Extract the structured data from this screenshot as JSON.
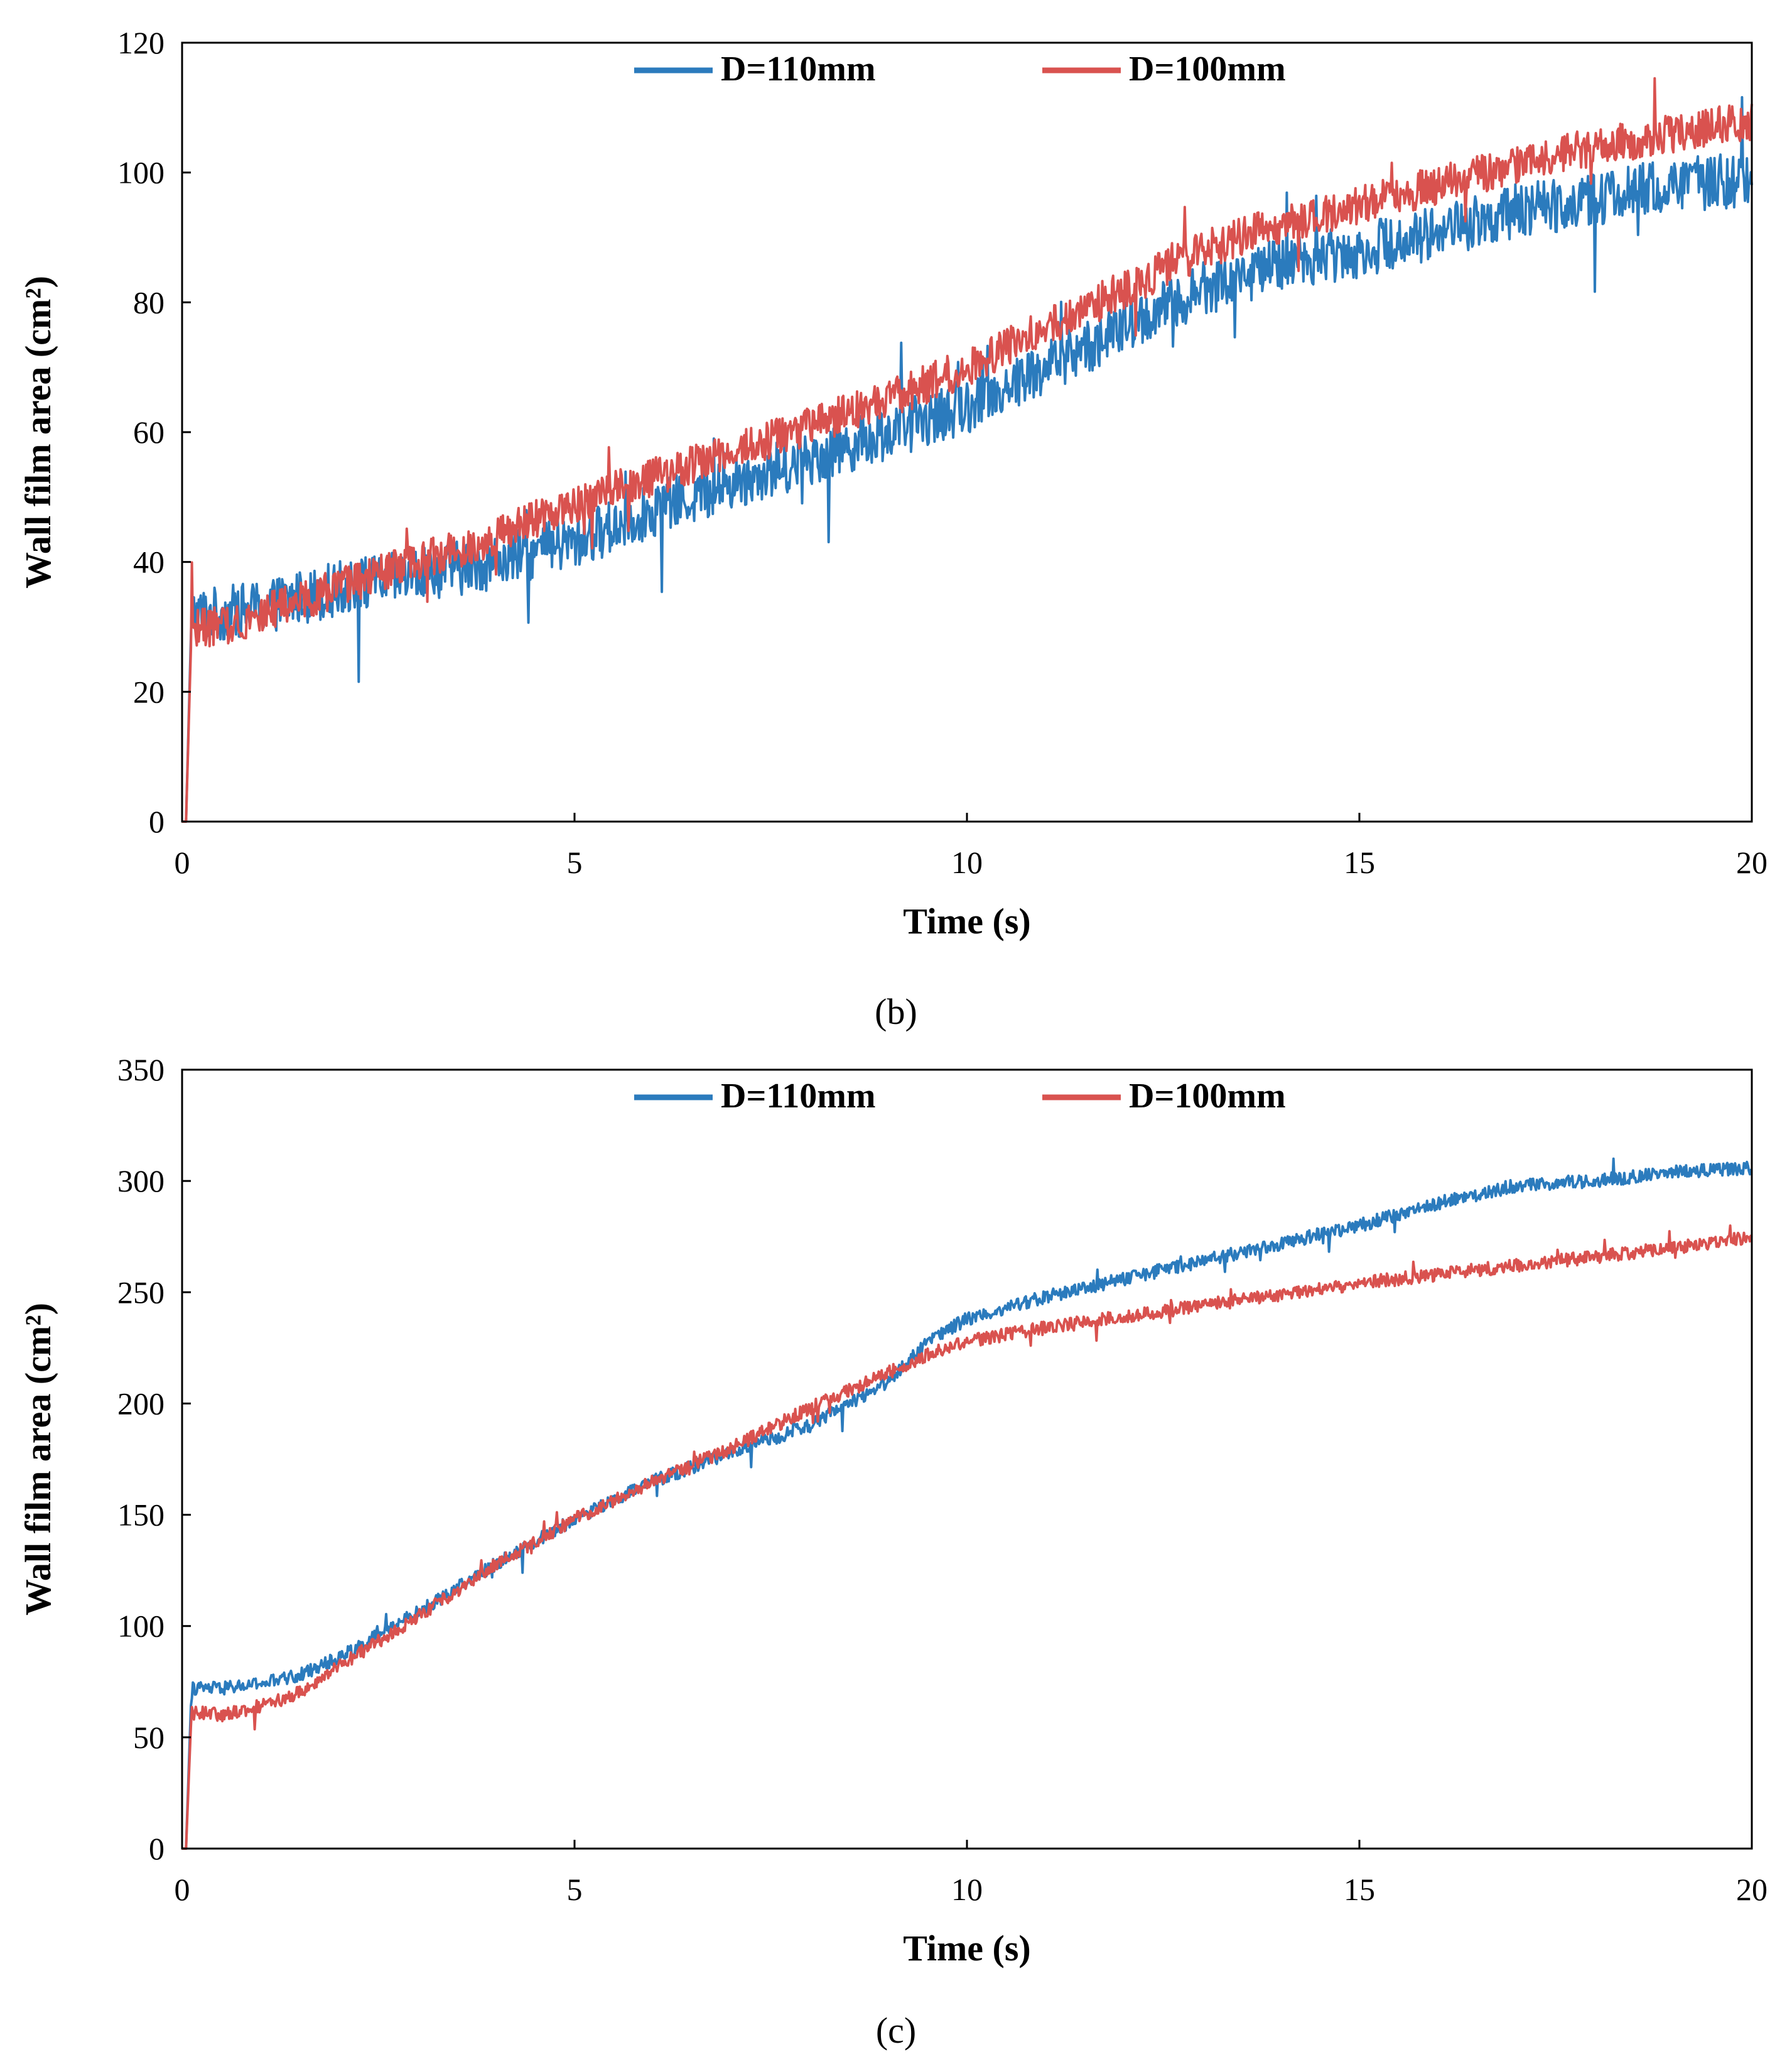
{
  "colors": {
    "series_110": "#2b7bbd",
    "series_100": "#d9524f",
    "axis": "#000000"
  },
  "panel_b": {
    "caption": "(b)",
    "chart_data": {
      "type": "line",
      "title": "",
      "xlabel": "Time (s)",
      "ylabel": "Wall film area (cm²)",
      "xlim": [
        0,
        20
      ],
      "ylim": [
        0,
        120
      ],
      "xticks": [
        0,
        5,
        10,
        15,
        20
      ],
      "yticks": [
        0,
        20,
        40,
        60,
        80,
        100,
        120
      ],
      "grid": false,
      "legend": "top-center",
      "series": [
        {
          "name": "D=110mm",
          "color": "#2b7bbd",
          "noise": 4.2,
          "x": [
            0,
            0.05,
            0.12,
            0.5,
            1,
            2,
            3,
            4,
            5,
            6,
            7,
            8,
            9,
            10,
            11,
            12,
            13,
            14,
            15,
            16,
            17,
            18,
            19,
            20
          ],
          "y": [
            0,
            0,
            32,
            32,
            33,
            36,
            38,
            40,
            43,
            48,
            52,
            56,
            60,
            64,
            70,
            76,
            82,
            86,
            88,
            91,
            94,
            96,
            98,
            99
          ]
        },
        {
          "name": "D=100mm",
          "color": "#d9524f",
          "noise": 3.0,
          "x": [
            0,
            0.05,
            0.12,
            0.5,
            1,
            2,
            3,
            4,
            5,
            6,
            7,
            8,
            9,
            10,
            11,
            12,
            13,
            14,
            15,
            16,
            17,
            18,
            19,
            20
          ],
          "y": [
            0,
            0,
            30,
            30,
            32,
            36,
            40,
            44,
            49,
            53,
            57,
            61,
            65,
            70,
            76,
            82,
            88,
            92,
            95,
            98,
            101,
            104,
            106,
            108
          ]
        }
      ]
    }
  },
  "panel_c": {
    "caption": "(c)",
    "chart_data": {
      "type": "line",
      "title": "",
      "xlabel": "Time (s)",
      "ylabel": "Wall film area (cm²)",
      "xlim": [
        0,
        20
      ],
      "ylim": [
        0,
        350
      ],
      "xticks": [
        0,
        5,
        10,
        15,
        20
      ],
      "yticks": [
        0,
        50,
        100,
        150,
        200,
        250,
        300,
        350
      ],
      "grid": false,
      "legend": "top-center",
      "series": [
        {
          "name": "D=110mm",
          "color": "#2b7bbd",
          "noise": 3.0,
          "x": [
            0,
            0.05,
            0.12,
            0.5,
            1,
            1.5,
            2,
            3,
            4,
            5,
            6,
            7,
            8,
            9,
            9.5,
            10,
            11,
            12,
            13,
            14,
            15,
            16,
            17,
            18,
            19,
            20
          ],
          "y": [
            0,
            0,
            72,
            72,
            74,
            78,
            86,
            106,
            128,
            148,
            165,
            178,
            190,
            210,
            228,
            238,
            248,
            256,
            264,
            272,
            280,
            290,
            298,
            300,
            304,
            306
          ]
        },
        {
          "name": "D=100mm",
          "color": "#d9524f",
          "noise": 3.0,
          "x": [
            0,
            0.05,
            0.12,
            0.5,
            1,
            1.5,
            2,
            3,
            4,
            5,
            6,
            7,
            8,
            9,
            9.5,
            10,
            11,
            12,
            13,
            14,
            15,
            16,
            17,
            18,
            19,
            20
          ],
          "y": [
            0,
            0,
            62,
            60,
            64,
            70,
            82,
            104,
            128,
            148,
            165,
            180,
            198,
            214,
            222,
            228,
            234,
            239,
            244,
            249,
            254,
            258,
            262,
            266,
            270,
            275
          ]
        }
      ]
    }
  }
}
